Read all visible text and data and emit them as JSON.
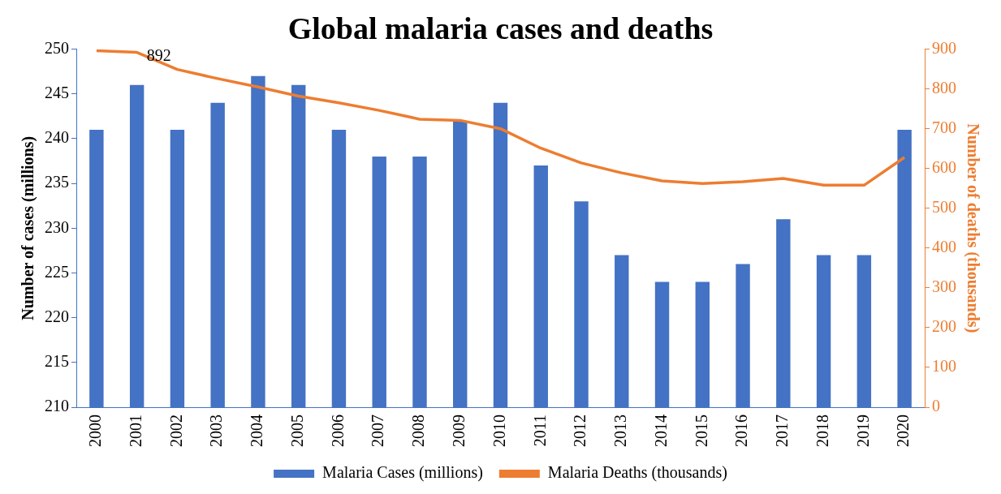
{
  "chart_data": {
    "type": "bar",
    "title": "Global malaria cases and deaths",
    "ylabel": "Number of cases (millions)",
    "y2label": "Number of deaths (thousands)",
    "categories": [
      "2000",
      "2001",
      "2002",
      "2003",
      "2004",
      "2005",
      "2006",
      "2007",
      "2008",
      "2009",
      "2010",
      "2011",
      "2012",
      "2013",
      "2014",
      "2015",
      "2016",
      "2017",
      "2018",
      "2019",
      "2020"
    ],
    "series": [
      {
        "name": "Malaria Cases (millions)",
        "color": "#4472c4",
        "values": [
          241,
          246,
          241,
          244,
          247,
          246,
          241,
          238,
          238,
          242,
          244,
          237,
          233,
          227,
          224,
          224,
          226,
          231,
          227,
          227,
          241
        ]
      },
      {
        "name": "Malaria Deaths (thousands)",
        "type": "line",
        "axis": "y2",
        "color": "#ed7d31",
        "values": [
          896,
          892,
          849,
          826,
          805,
          782,
          765,
          746,
          724,
          721,
          700,
          651,
          614,
          589,
          569,
          562,
          567,
          575,
          558,
          558,
          628
        ],
        "value_labels": [
          null,
          "892",
          null,
          null,
          null,
          null,
          null,
          null,
          null,
          null,
          null,
          null,
          null,
          null,
          null,
          null,
          null,
          null,
          null,
          null,
          null
        ]
      }
    ],
    "ylim": [
      210,
      250
    ],
    "yticks": [
      210,
      215,
      220,
      225,
      230,
      235,
      240,
      245,
      250
    ],
    "y2lim": [
      0,
      900
    ],
    "y2ticks": [
      0,
      100,
      200,
      300,
      400,
      500,
      600,
      700,
      800,
      900
    ],
    "grid": false,
    "legend": "bottom",
    "marker": "none",
    "line_style": "solid"
  }
}
